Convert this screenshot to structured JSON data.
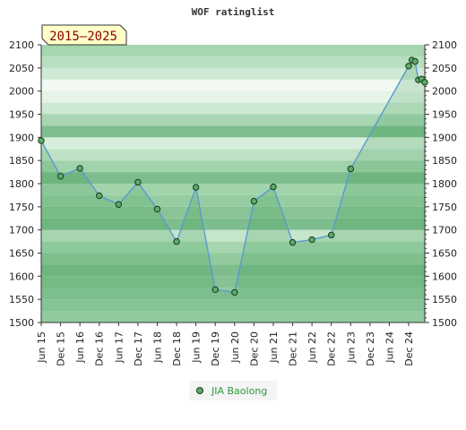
{
  "chart_data": {
    "type": "area",
    "title": "WOF ratinglist",
    "period_label": "2015–2025",
    "ylim": [
      1500,
      2100
    ],
    "y_ticks": [
      1500,
      1550,
      1600,
      1650,
      1700,
      1750,
      1800,
      1850,
      1900,
      1950,
      2000,
      2050,
      2100
    ],
    "x_tick_labels": [
      "Jun 15",
      "Dec 15",
      "Jun 16",
      "Dec 16",
      "Jun 17",
      "Dec 17",
      "Jun 18",
      "Dec 18",
      "Jun 19",
      "Dec 19",
      "Jun 20",
      "Dec 20",
      "Jun 21",
      "Dec 21",
      "Jun 22",
      "Dec 22",
      "Jun 23",
      "Dec 23",
      "Jun 24",
      "Dec 24"
    ],
    "series": [
      {
        "name": "JIA Baolong",
        "color": "#5aaa6a",
        "points": [
          {
            "x": "2015-06",
            "y": 1893
          },
          {
            "x": "2015-12",
            "y": 1816
          },
          {
            "x": "2016-06",
            "y": 1833
          },
          {
            "x": "2016-12",
            "y": 1774
          },
          {
            "x": "2017-06",
            "y": 1755
          },
          {
            "x": "2017-12",
            "y": 1803
          },
          {
            "x": "2018-06",
            "y": 1745
          },
          {
            "x": "2018-12",
            "y": 1675
          },
          {
            "x": "2019-06",
            "y": 1792
          },
          {
            "x": "2019-12",
            "y": 1571
          },
          {
            "x": "2020-06",
            "y": 1565
          },
          {
            "x": "2020-12",
            "y": 1762
          },
          {
            "x": "2021-06",
            "y": 1793
          },
          {
            "x": "2021-12",
            "y": 1673
          },
          {
            "x": "2022-06",
            "y": 1679
          },
          {
            "x": "2022-12",
            "y": 1689
          },
          {
            "x": "2023-06",
            "y": 1832
          },
          {
            "x": "2024-12",
            "y": 2054
          },
          {
            "x": "2025-01",
            "y": 2067
          },
          {
            "x": "2025-02",
            "y": 2064
          },
          {
            "x": "2025-03",
            "y": 2024
          },
          {
            "x": "2025-04",
            "y": 2026
          },
          {
            "x": "2025-05",
            "y": 2019
          }
        ]
      }
    ],
    "grid": true,
    "legend_position": "bottom-center"
  }
}
